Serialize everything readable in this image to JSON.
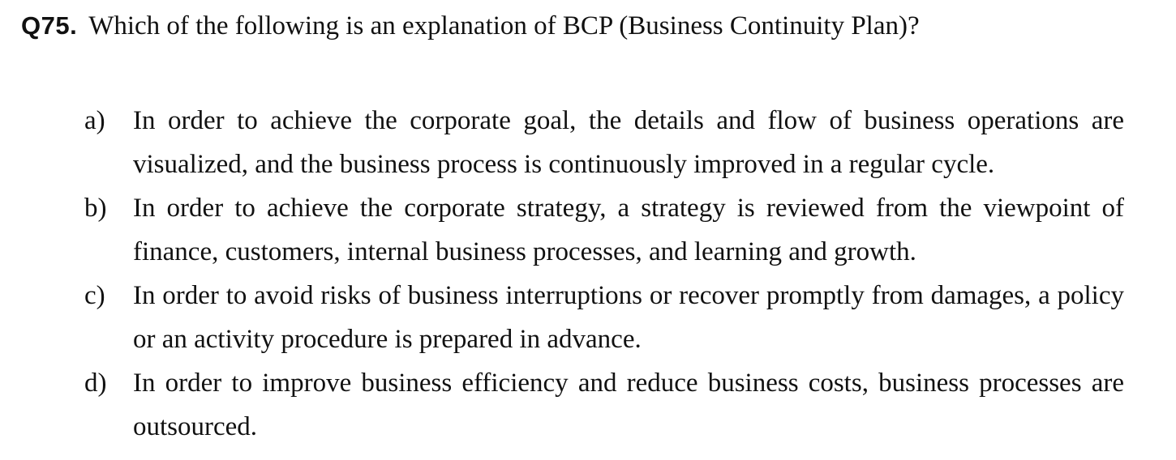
{
  "question": {
    "number": "Q75.",
    "text": "Which of the following is an explanation of BCP (Business Continuity Plan)?"
  },
  "options": [
    {
      "letter": "a)",
      "text": "In order to achieve the corporate goal, the details and flow of business operations are visualized, and the business process is continuously improved in a regular cycle."
    },
    {
      "letter": "b)",
      "text": "In order to achieve the corporate strategy, a strategy is reviewed from the viewpoint of finance, customers, internal business processes, and learning and growth."
    },
    {
      "letter": "c)",
      "text": "In order to avoid risks of business interruptions or recover promptly from damages, a policy or an activity procedure is prepared in advance."
    },
    {
      "letter": "d)",
      "text": "In order to improve business efficiency and reduce business costs, business processes are outsourced."
    }
  ]
}
